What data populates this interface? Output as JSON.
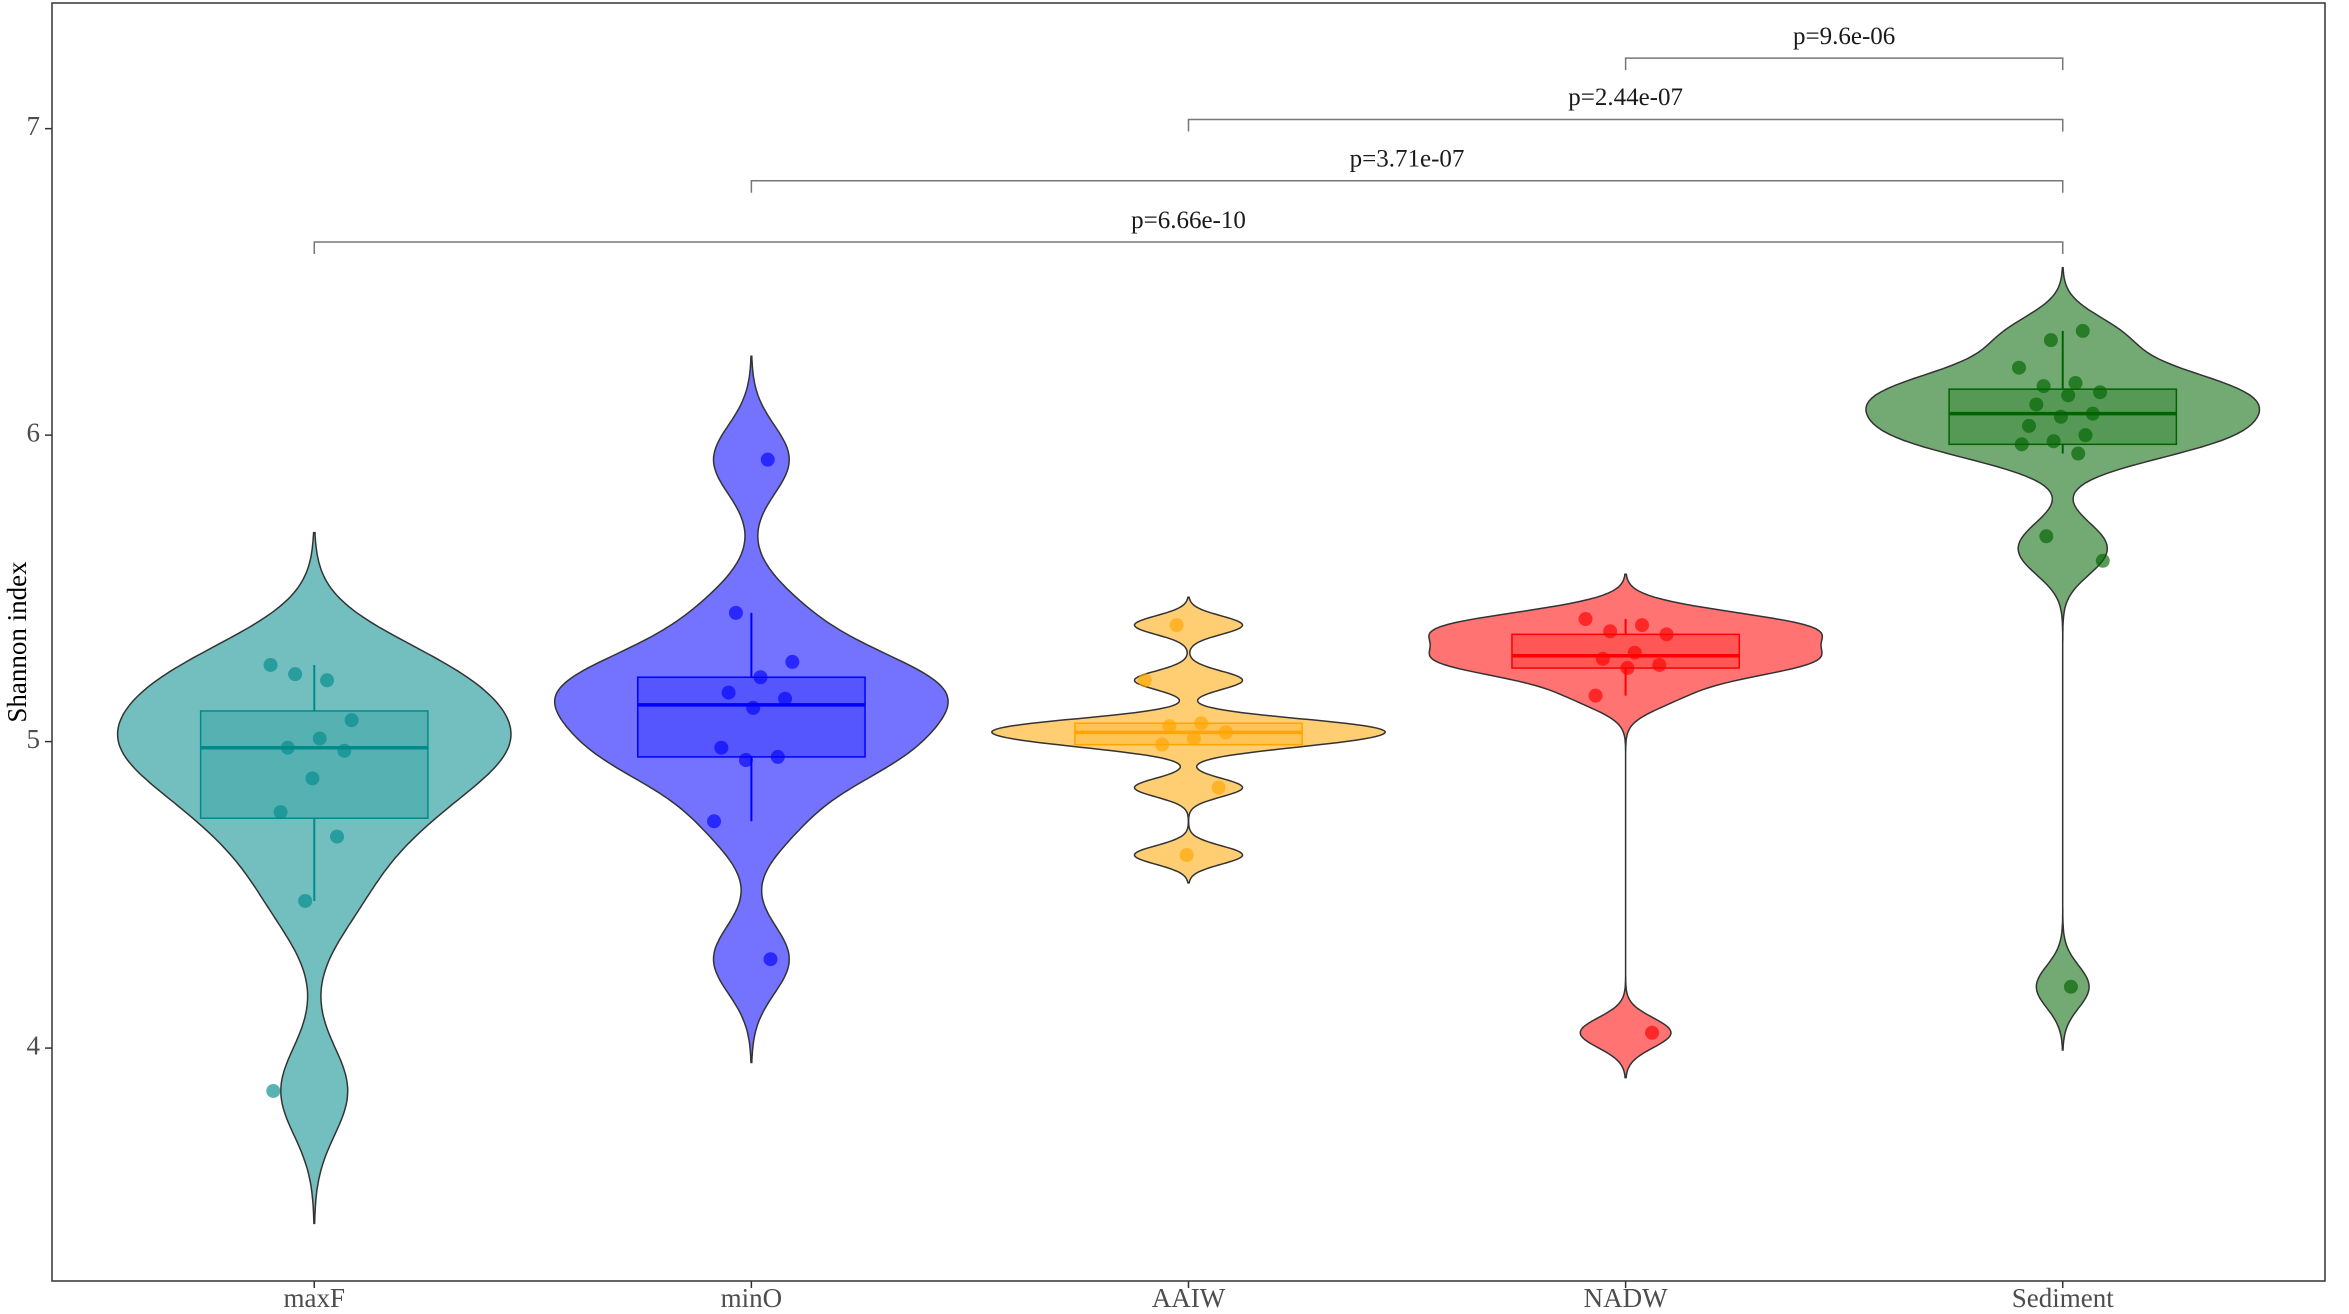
{
  "chart_data": {
    "type": "violin",
    "ylabel": "Shannon index",
    "categories": [
      "maxF",
      "minO",
      "AAIW",
      "NADW",
      "Sediment"
    ],
    "series": [
      {
        "color": "#008b8b",
        "values": [
          5.25,
          5.2,
          5.22,
          5.07,
          5.01,
          4.98,
          4.97,
          4.88,
          4.77,
          4.69,
          4.48,
          3.86
        ],
        "box": {
          "lower": 4.48,
          "q1": 4.75,
          "median": 4.98,
          "q3": 5.1,
          "upper": 5.25
        }
      },
      {
        "color": "#0000ff",
        "values": [
          5.92,
          5.42,
          5.26,
          5.21,
          5.16,
          5.14,
          5.11,
          4.98,
          4.95,
          4.94,
          4.74,
          4.29
        ],
        "box": {
          "lower": 4.74,
          "q1": 4.95,
          "median": 5.12,
          "q3": 5.21,
          "upper": 5.42
        }
      },
      {
        "color": "#ffa500",
        "values": [
          5.38,
          5.2,
          5.06,
          5.05,
          5.03,
          5.01,
          4.99,
          4.85,
          4.63
        ],
        "box": {
          "lower": 4.99,
          "q1": 4.99,
          "median": 5.03,
          "q3": 5.06,
          "upper": 5.06
        }
      },
      {
        "color": "#ff0000",
        "values": [
          5.4,
          5.38,
          5.36,
          5.35,
          5.29,
          5.27,
          5.25,
          5.24,
          5.15,
          4.05
        ],
        "box": {
          "lower": 5.15,
          "q1": 5.24,
          "median": 5.28,
          "q3": 5.35,
          "upper": 5.4
        }
      },
      {
        "color": "#006400",
        "values": [
          6.34,
          6.31,
          6.22,
          6.17,
          6.16,
          6.14,
          6.13,
          6.1,
          6.07,
          6.06,
          6.03,
          6.0,
          5.98,
          5.97,
          5.94,
          5.67,
          5.59,
          4.2
        ],
        "box": {
          "lower": 5.94,
          "q1": 5.97,
          "median": 6.07,
          "q3": 6.15,
          "upper": 6.34
        }
      }
    ],
    "comparisons": [
      {
        "groups": [
          "maxF",
          "Sediment"
        ],
        "y": 6.63,
        "label": "p=6.66e-10"
      },
      {
        "groups": [
          "minO",
          "Sediment"
        ],
        "y": 6.83,
        "label": "p=3.71e-07"
      },
      {
        "groups": [
          "AAIW",
          "Sediment"
        ],
        "y": 7.03,
        "label": "p=2.44e-07"
      },
      {
        "groups": [
          "NADW",
          "Sediment"
        ],
        "y": 7.23,
        "label": "p=9.6e-06"
      }
    ],
    "ylim": [
      3.24,
      7.41
    ],
    "yticks": [
      4,
      5,
      6,
      7
    ]
  }
}
